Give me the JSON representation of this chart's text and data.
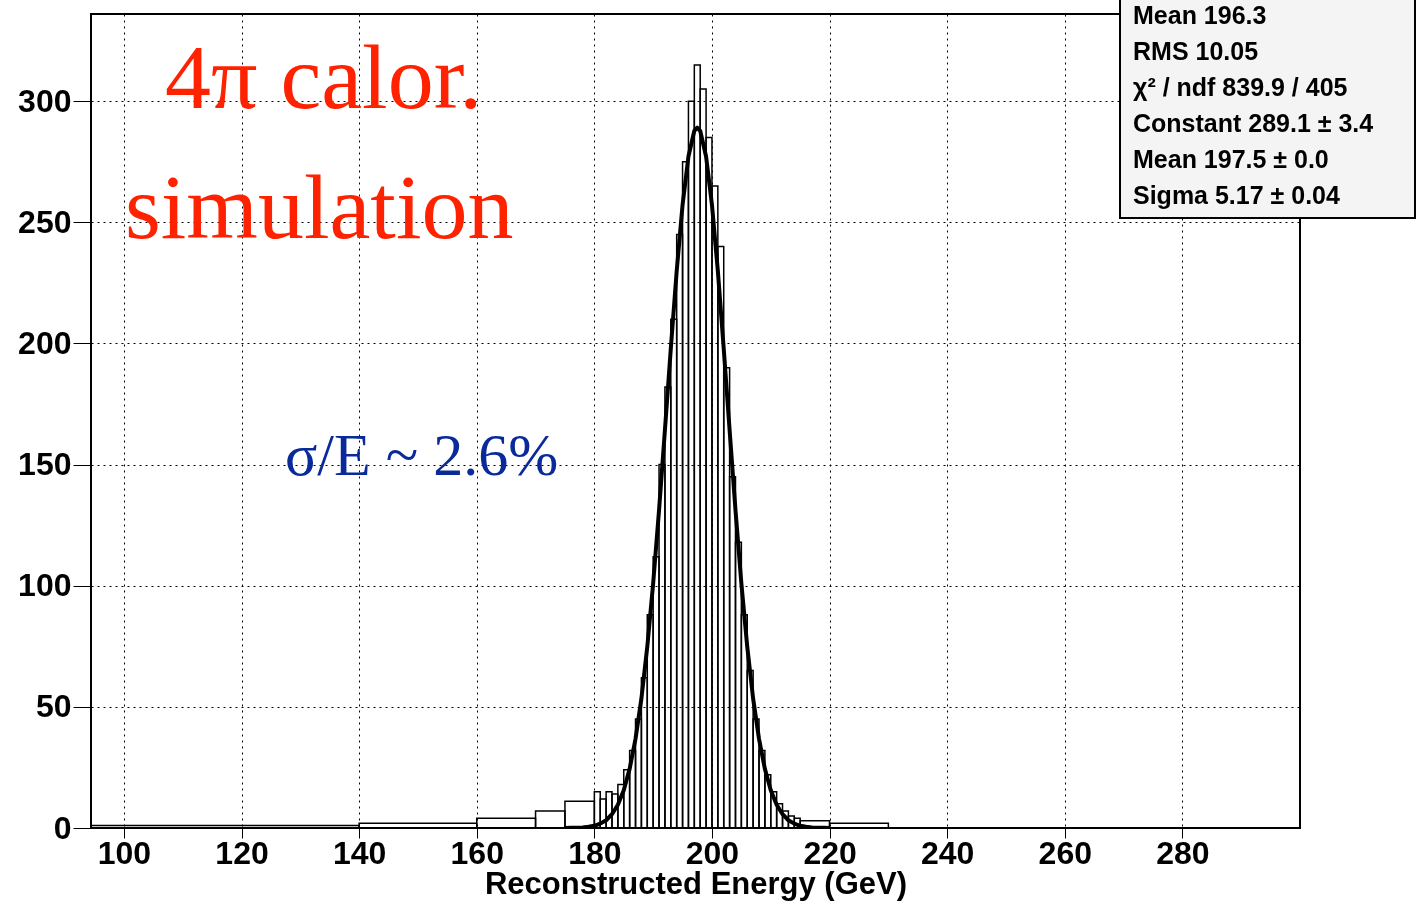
{
  "chart_data": {
    "type": "histogram",
    "xlabel": "Reconstructed Energy (GeV)",
    "xlim": [
      94.4,
      300
    ],
    "xticks": [
      100,
      120,
      140,
      160,
      180,
      200,
      220,
      240,
      260,
      280
    ],
    "ylim": [
      0,
      336
    ],
    "yticks": [
      0,
      50,
      100,
      150,
      200,
      250,
      300
    ],
    "grid": true,
    "series": [
      {
        "color": "#000000",
        "bins": [
          94.4,
          140,
          160,
          170,
          175,
          180,
          181,
          182,
          183,
          184,
          185,
          186,
          187,
          188,
          189,
          190,
          191,
          192,
          193,
          194,
          195,
          196,
          197,
          198,
          199,
          200,
          201,
          202,
          203,
          204,
          205,
          206,
          207,
          208,
          209,
          210,
          211,
          212,
          213,
          214,
          215,
          220,
          230,
          300
        ],
        "values": [
          1,
          2,
          4,
          7,
          11,
          15,
          12,
          15,
          14,
          18,
          24,
          32,
          45,
          62,
          88,
          112,
          150,
          182,
          210,
          245,
          275,
          300,
          315,
          305,
          285,
          265,
          240,
          190,
          145,
          118,
          88,
          65,
          45,
          32,
          22,
          15,
          10,
          7,
          5,
          4,
          3,
          2,
          0
        ]
      },
      {
        "type": "line",
        "color": "#000000",
        "x": [
          175,
          176,
          177,
          178,
          179,
          180,
          181,
          182,
          183,
          184,
          185,
          186,
          187,
          188,
          189,
          190,
          191,
          192,
          193,
          194,
          195,
          196,
          197,
          197.5,
          198,
          199,
          200,
          201,
          202,
          203,
          204,
          205,
          206,
          207,
          208,
          209,
          210,
          211,
          212,
          213,
          214,
          215,
          216,
          217,
          218,
          219,
          220
        ],
        "values": [
          0,
          0.1,
          0.1,
          0.2,
          0.5,
          0.9,
          1.8,
          3.2,
          5.7,
          9.6,
          15.6,
          24.4,
          36.8,
          53.4,
          74.8,
          101.0,
          131.2,
          164.2,
          197.9,
          229.9,
          257.2,
          277.2,
          287.8,
          289.1,
          287.8,
          277.2,
          257.2,
          229.9,
          197.9,
          164.2,
          131.2,
          101.0,
          74.8,
          53.4,
          36.8,
          24.4,
          15.6,
          9.6,
          5.7,
          3.2,
          1.8,
          0.9,
          0.5,
          0.2,
          0.1,
          0.1,
          0
        ]
      }
    ],
    "annotations": [
      "4π calor.",
      "simulation",
      "σ/E ~  2.6%",
      "Mean 196.3",
      "RMS 10.05",
      "χ² / ndf 839.9 / 405",
      "Constant 289.1 ± 3.4",
      "Mean 197.5 ± 0.0",
      "Sigma 5.17 ± 0.04"
    ]
  }
}
